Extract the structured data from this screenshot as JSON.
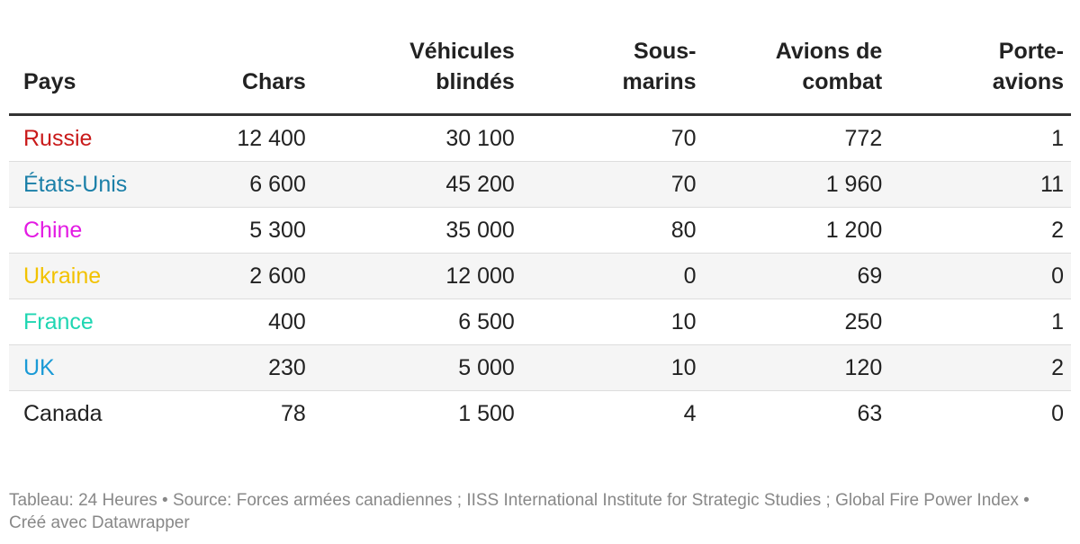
{
  "chart_data": {
    "type": "table",
    "columns": [
      "Pays",
      "Chars",
      "Véhicules blindés",
      "Sous-marins",
      "Avions de combat",
      "Porte-avions"
    ],
    "header_lines": [
      [
        "Pays"
      ],
      [
        "Chars"
      ],
      [
        "Véhicules",
        "blindés"
      ],
      [
        "Sous-",
        "marins"
      ],
      [
        "Avions de",
        "combat"
      ],
      [
        "Porte-",
        "avions"
      ]
    ],
    "rows": [
      {
        "country": "Russie",
        "color": "#c91a1a",
        "values": [
          "12 400",
          "30 100",
          "70",
          "772",
          "1"
        ]
      },
      {
        "country": "États-Unis",
        "color": "#1a7fa8",
        "values": [
          "6 600",
          "45 200",
          "70",
          "1 960",
          "11"
        ]
      },
      {
        "country": "Chine",
        "color": "#e31ae3",
        "values": [
          "5 300",
          "35 000",
          "80",
          "1 200",
          "2"
        ]
      },
      {
        "country": "Ukraine",
        "color": "#f2c200",
        "values": [
          "2 600",
          "12 000",
          "0",
          "69",
          "0"
        ]
      },
      {
        "country": "France",
        "color": "#1fd6b2",
        "values": [
          "400",
          "6 500",
          "10",
          "250",
          "1"
        ]
      },
      {
        "country": "UK",
        "color": "#1a9ad6",
        "values": [
          "230",
          "5 000",
          "10",
          "120",
          "2"
        ]
      },
      {
        "country": "Canada",
        "color": "#222222",
        "values": [
          "78",
          "1 500",
          "4",
          "63",
          "0"
        ]
      }
    ]
  },
  "footer": {
    "text": "Tableau: 24 Heures • Source: Forces armées canadiennes ; IISS International Institute for Strategic Studies ; Global Fire Power Index • Créé avec Datawrapper"
  }
}
